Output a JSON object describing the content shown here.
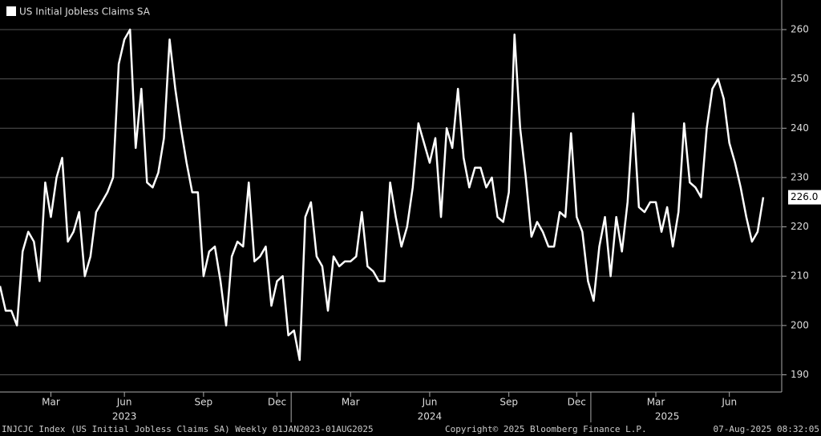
{
  "chart_data": {
    "type": "line",
    "categories": [
      null,
      null,
      null,
      null,
      null,
      null,
      null,
      null,
      null,
      "Mar",
      null,
      null,
      null,
      null,
      null,
      null,
      null,
      null,
      null,
      null,
      null,
      null,
      "Jun",
      null,
      null,
      null,
      null,
      null,
      null,
      null,
      null,
      null,
      null,
      null,
      null,
      null,
      "Sep",
      null,
      null,
      null,
      null,
      null,
      null,
      null,
      null,
      null,
      null,
      null,
      null,
      "Dec",
      null,
      null,
      null,
      null,
      null,
      null,
      null,
      null,
      null,
      null,
      null,
      null,
      "Mar",
      null,
      null,
      null,
      null,
      null,
      null,
      null,
      null,
      null,
      null,
      null,
      null,
      null,
      "Jun",
      null,
      null,
      null,
      null,
      null,
      null,
      null,
      null,
      null,
      null,
      null,
      null,
      null,
      "Sep",
      null,
      null,
      null,
      null,
      null,
      null,
      null,
      null,
      null,
      null,
      null,
      "Dec",
      null,
      null,
      null,
      null,
      null,
      null,
      null,
      null,
      null,
      null,
      null,
      null,
      null,
      "Mar",
      null,
      null,
      null,
      null,
      null,
      null,
      null,
      null,
      null,
      null,
      null,
      null,
      "Jun",
      null,
      null,
      null,
      null,
      null,
      null
    ],
    "year_labels": [
      null,
      null,
      null,
      null,
      null,
      null,
      null,
      null,
      null,
      null,
      null,
      null,
      null,
      null,
      null,
      null,
      null,
      null,
      null,
      null,
      null,
      null,
      "2023",
      null,
      null,
      null,
      null,
      null,
      null,
      null,
      null,
      null,
      null,
      null,
      null,
      null,
      null,
      null,
      null,
      null,
      null,
      null,
      null,
      null,
      null,
      null,
      null,
      null,
      null,
      null,
      null,
      null,
      null,
      null,
      null,
      null,
      null,
      null,
      null,
      null,
      null,
      null,
      null,
      null,
      null,
      null,
      null,
      null,
      null,
      null,
      null,
      null,
      null,
      null,
      null,
      null,
      "2024",
      null,
      null,
      null,
      null,
      null,
      null,
      null,
      null,
      null,
      null,
      null,
      null,
      null,
      null,
      null,
      null,
      null,
      null,
      null,
      null,
      null,
      null,
      null,
      null,
      null,
      null,
      null,
      null,
      null,
      null,
      null,
      null,
      null,
      null,
      null,
      null,
      null,
      null,
      null,
      null,
      null,
      "2025",
      null,
      null,
      null,
      null,
      null,
      null,
      null,
      null,
      null,
      null,
      null,
      null,
      null,
      null
    ],
    "series": [
      {
        "name": "US Initial Jobless Claims SA",
        "color": "#ffffff",
        "values": [
          208,
          203,
          203,
          200,
          215,
          219,
          217,
          209,
          229,
          222,
          230,
          234,
          217,
          219,
          223,
          210,
          214,
          223,
          225,
          227,
          230,
          253,
          258,
          260,
          236,
          248,
          229,
          228,
          231,
          238,
          258,
          248,
          240,
          233,
          227,
          227,
          210,
          215,
          216,
          209,
          200,
          214,
          217,
          216,
          229,
          213,
          214,
          216,
          204,
          209,
          210,
          198,
          199,
          193,
          222,
          225,
          214,
          212,
          203,
          214,
          212,
          213,
          213,
          214,
          223,
          212,
          211,
          209,
          209,
          229,
          222,
          216,
          220,
          228,
          241,
          237,
          233,
          238,
          222,
          240,
          236,
          248,
          234,
          228,
          232,
          232,
          228,
          230,
          222,
          221,
          227,
          259,
          240,
          230,
          218,
          221,
          219,
          216,
          216,
          223,
          222,
          239,
          222,
          219,
          209,
          205,
          216,
          222,
          210,
          222,
          215,
          225,
          243,
          224,
          223,
          225,
          225,
          219,
          224,
          216,
          223,
          241,
          229,
          228,
          226,
          240,
          248,
          250,
          246,
          237,
          233,
          228,
          222,
          217,
          219,
          226
        ],
        "value_labels": [
          null,
          null,
          null,
          null,
          null,
          null,
          null,
          null,
          null,
          null,
          null,
          null,
          null,
          null,
          null,
          null,
          null,
          null,
          null,
          null,
          null,
          null,
          null,
          null,
          null,
          null,
          null,
          null,
          null,
          null,
          null,
          null,
          null,
          null,
          null,
          null,
          null,
          null,
          null,
          null,
          null,
          null,
          null,
          null,
          null,
          null,
          null,
          null,
          null,
          null,
          null,
          null,
          null,
          null,
          null,
          null,
          null,
          null,
          null,
          null,
          null,
          null,
          null,
          null,
          null,
          null,
          null,
          null,
          null,
          null,
          null,
          null,
          null,
          null,
          null,
          null,
          null,
          null,
          null,
          null,
          null,
          null,
          null,
          null,
          null,
          null,
          null,
          null,
          null,
          null,
          null,
          null,
          null,
          null,
          null,
          null,
          null,
          null,
          null,
          null,
          null,
          null,
          null,
          null,
          null,
          null,
          null,
          null,
          null,
          null,
          null,
          null,
          null,
          null,
          null,
          null,
          null,
          null,
          null,
          null,
          null,
          null,
          null,
          null,
          null,
          null,
          null,
          null,
          null,
          null,
          null,
          null,
          null,
          null,
          null,
          "226.0"
        ]
      }
    ],
    "ylim": [
      187,
      266
    ],
    "yticks": [
      190,
      200,
      210,
      220,
      230,
      240,
      250,
      260
    ],
    "grid": true,
    "footer": {
      "left": "INJCJC Index (US Initial Jobless Claims SA)  Weekly 01JAN2023-01AUG2025",
      "center": "Copyright© 2025 Bloomberg Finance L.P.",
      "right": "07-Aug-2025 08:32:05"
    }
  }
}
